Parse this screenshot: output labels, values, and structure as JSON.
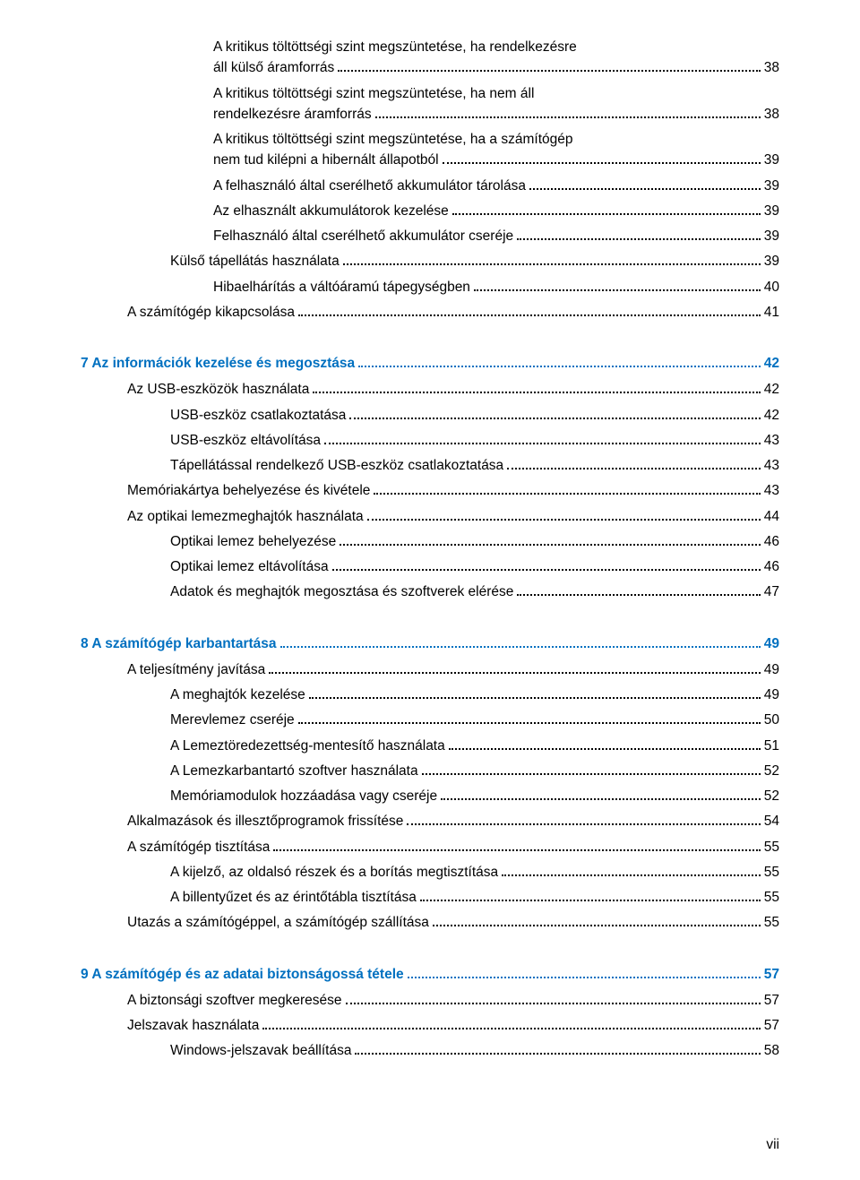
{
  "colors": {
    "heading": "#0070c0",
    "text": "#000000",
    "background": "#ffffff"
  },
  "page_number": "vii",
  "entries": [
    {
      "level": 3,
      "text": "A kritikus töltöttségi szint megszüntetése, ha rendelkezésre áll külső áramforrás",
      "page": "38",
      "multiline": true
    },
    {
      "level": 3,
      "text": "A kritikus töltöttségi szint megszüntetése, ha nem áll rendelkezésre áramforrás",
      "page": "38",
      "multiline": true
    },
    {
      "level": 3,
      "text": "A kritikus töltöttségi szint megszüntetése, ha a számítógép nem tud kilépni a hibernált állapotból",
      "page": "39",
      "multiline": true
    },
    {
      "level": 3,
      "text": "A felhasználó által cserélhető akkumulátor tárolása",
      "page": "39"
    },
    {
      "level": 3,
      "text": "Az elhasznált akkumulátorok kezelése",
      "page": "39"
    },
    {
      "level": 3,
      "text": "Felhasználó által cserélhető akkumulátor cseréje",
      "page": "39"
    },
    {
      "level": 2,
      "text": "Külső tápellátás használata",
      "page": "39"
    },
    {
      "level": 3,
      "text": "Hibaelhárítás a váltóáramú tápegységben",
      "page": "40"
    },
    {
      "level": 1,
      "text": "A számítógép kikapcsolása",
      "page": "41"
    },
    {
      "level": 0,
      "text": "7  Az információk kezelése és megosztása",
      "page": "42",
      "heading": true
    },
    {
      "level": 1,
      "text": "Az USB-eszközök használata",
      "page": "42"
    },
    {
      "level": 2,
      "text": "USB-eszköz csatlakoztatása",
      "page": "42"
    },
    {
      "level": 2,
      "text": "USB-eszköz eltávolítása",
      "page": "43"
    },
    {
      "level": 2,
      "text": "Tápellátással rendelkező USB-eszköz csatlakoztatása",
      "page": "43"
    },
    {
      "level": 1,
      "text": "Memóriakártya behelyezése és kivétele",
      "page": "43"
    },
    {
      "level": 1,
      "text": "Az optikai lemezmeghajtók használata",
      "page": "44"
    },
    {
      "level": 2,
      "text": "Optikai lemez behelyezése",
      "page": "46"
    },
    {
      "level": 2,
      "text": "Optikai lemez eltávolítása",
      "page": "46"
    },
    {
      "level": 2,
      "text": "Adatok és meghajtók megosztása és szoftverek elérése",
      "page": "47"
    },
    {
      "level": 0,
      "text": "8  A számítógép karbantartása",
      "page": "49",
      "heading": true
    },
    {
      "level": 1,
      "text": "A teljesítmény javítása",
      "page": "49"
    },
    {
      "level": 2,
      "text": "A meghajtók kezelése",
      "page": "49"
    },
    {
      "level": 2,
      "text": "Merevlemez cseréje",
      "page": "50"
    },
    {
      "level": 2,
      "text": "A Lemeztöredezettség-mentesítő használata",
      "page": "51"
    },
    {
      "level": 2,
      "text": "A Lemezkarbantartó szoftver használata",
      "page": "52"
    },
    {
      "level": 2,
      "text": "Memóriamodulok hozzáadása vagy cseréje",
      "page": "52"
    },
    {
      "level": 1,
      "text": "Alkalmazások és illesztőprogramok frissítése",
      "page": "54"
    },
    {
      "level": 1,
      "text": "A számítógép tisztítása",
      "page": "55"
    },
    {
      "level": 2,
      "text": "A kijelző, az oldalsó részek és a borítás megtisztítása",
      "page": "55"
    },
    {
      "level": 2,
      "text": "A billentyűzet és az érintőtábla tisztítása",
      "page": "55"
    },
    {
      "level": 1,
      "text": "Utazás a számítógéppel, a számítógép szállítása",
      "page": "55"
    },
    {
      "level": 0,
      "text": "9  A számítógép és az adatai biztonságossá tétele",
      "page": "57",
      "heading": true
    },
    {
      "level": 1,
      "text": "A biztonsági szoftver megkeresése",
      "page": "57"
    },
    {
      "level": 1,
      "text": "Jelszavak használata",
      "page": "57"
    },
    {
      "level": 2,
      "text": "Windows-jelszavak beállítása",
      "page": "58"
    }
  ]
}
